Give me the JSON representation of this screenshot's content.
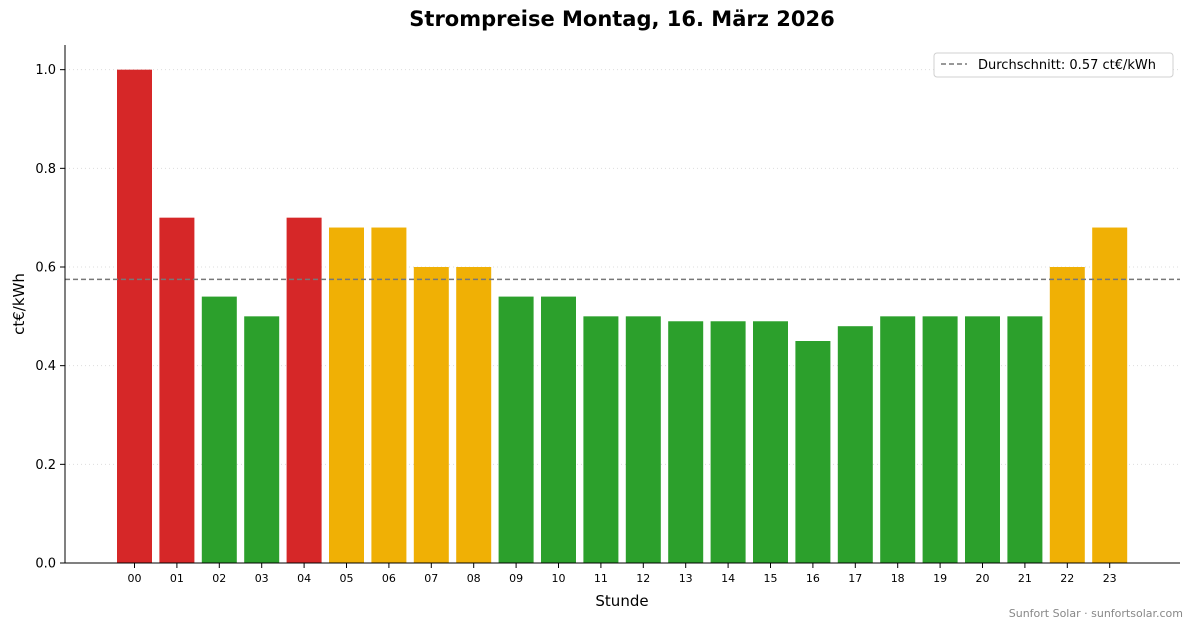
{
  "chart_data": {
    "type": "bar",
    "title": "Strompreise Montag, 16. März 2026",
    "xlabel": "Stunde",
    "ylabel": "ct€/kWh",
    "categories": [
      "00",
      "01",
      "02",
      "03",
      "04",
      "05",
      "06",
      "07",
      "08",
      "09",
      "10",
      "11",
      "12",
      "13",
      "14",
      "15",
      "16",
      "17",
      "18",
      "19",
      "20",
      "21",
      "22",
      "23"
    ],
    "values": [
      1.0,
      0.7,
      0.54,
      0.5,
      0.7,
      0.68,
      0.68,
      0.6,
      0.6,
      0.54,
      0.54,
      0.5,
      0.5,
      0.49,
      0.49,
      0.49,
      0.45,
      0.48,
      0.5,
      0.5,
      0.5,
      0.5,
      0.6,
      0.68
    ],
    "bar_colors": [
      "#d62728",
      "#d62728",
      "#2ca02c",
      "#2ca02c",
      "#d62728",
      "#f0b005",
      "#f0b005",
      "#f0b005",
      "#f0b005",
      "#2ca02c",
      "#2ca02c",
      "#2ca02c",
      "#2ca02c",
      "#2ca02c",
      "#2ca02c",
      "#2ca02c",
      "#2ca02c",
      "#2ca02c",
      "#2ca02c",
      "#2ca02c",
      "#2ca02c",
      "#2ca02c",
      "#f0b005",
      "#f0b005"
    ],
    "ylim": [
      0,
      1.05
    ],
    "yticks": [
      "0.0",
      "0.2",
      "0.4",
      "0.6",
      "0.8",
      "1.0"
    ],
    "average": 0.575,
    "legend": {
      "label": "Durchschnitt: 0.57 ct€/kWh",
      "placement": "top-right",
      "line_color": "#777777"
    },
    "grid": "horizontal dotted"
  },
  "footer": {
    "credit": "Sunfort Solar · sunfortsolar.com"
  }
}
